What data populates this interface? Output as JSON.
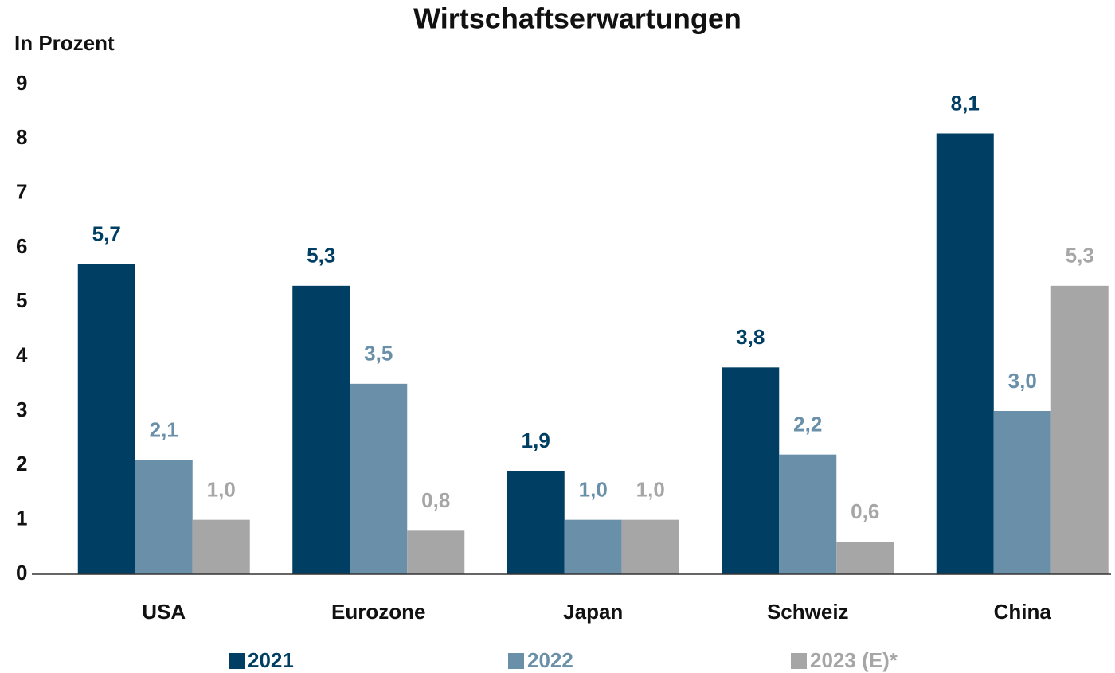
{
  "chart_data": {
    "type": "bar",
    "title": "Wirtschaftserwartungen",
    "y_axis_label": "In Prozent",
    "categories": [
      "USA",
      "Eurozone",
      "Japan",
      "Schweiz",
      "China"
    ],
    "series": [
      {
        "name": "2021",
        "color": "#003f63",
        "values": [
          5.7,
          5.3,
          1.9,
          3.8,
          8.1
        ],
        "value_labels": [
          "5,7",
          "5,3",
          "1,9",
          "3,8",
          "8,1"
        ]
      },
      {
        "name": "2022",
        "color": "#6a8fa8",
        "values": [
          2.1,
          3.5,
          1.0,
          2.2,
          3.0
        ],
        "value_labels": [
          "2,1",
          "3,5",
          "1,0",
          "2,2",
          "3,0"
        ]
      },
      {
        "name": "2023 (E)*",
        "color": "#a6a6a6",
        "values": [
          1.0,
          0.8,
          1.0,
          0.6,
          5.3
        ],
        "value_labels": [
          "1,0",
          "0,8",
          "1,0",
          "0,6",
          "5,3"
        ]
      }
    ],
    "ylim": [
      0,
      9
    ],
    "yticks": [
      0,
      1,
      2,
      3,
      4,
      5,
      6,
      7,
      8,
      9
    ],
    "grid": false,
    "legend": "bottom"
  }
}
